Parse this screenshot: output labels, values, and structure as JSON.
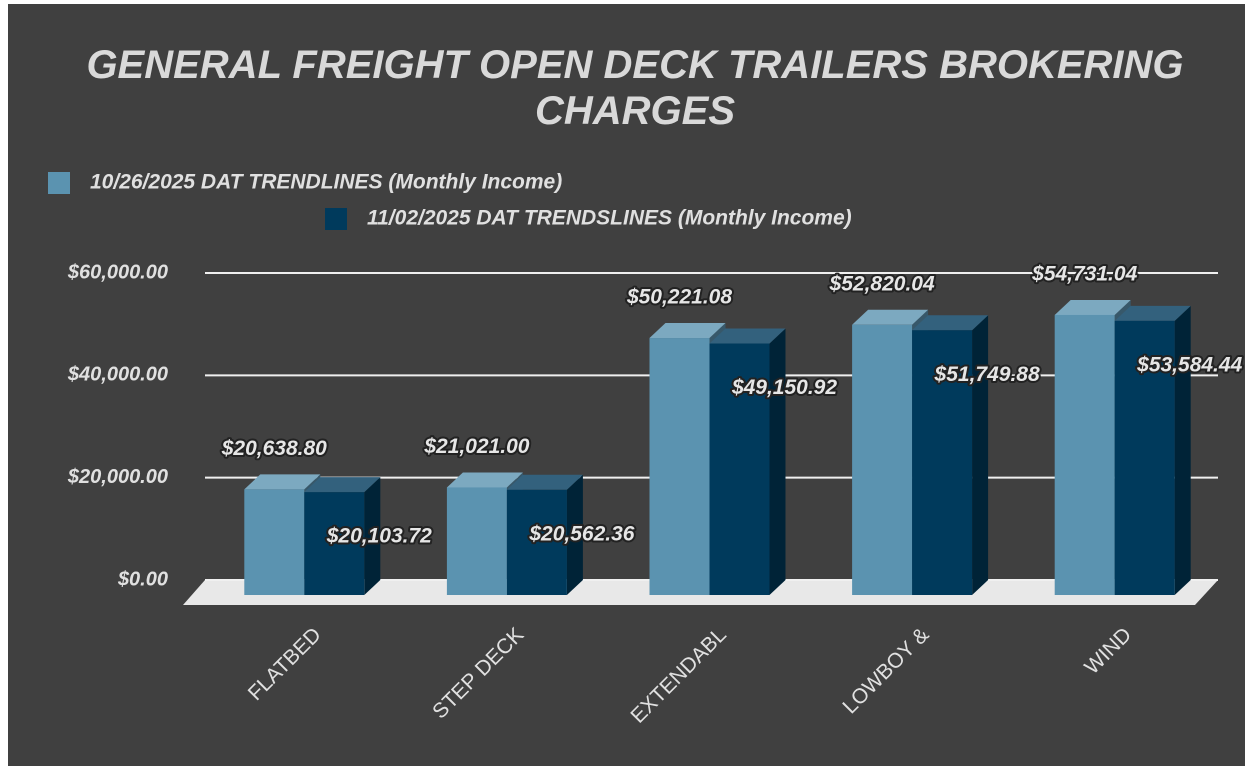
{
  "chart_data": {
    "type": "bar3d",
    "title": "GENERAL FREIGHT OPEN DECK TRAILERS BROKERING CHARGES",
    "categories": [
      "FLATBED",
      "STEP DECK",
      "EXTENDABL",
      "LOWBOY &",
      "WIND"
    ],
    "series": [
      {
        "name": "10/26/2025 DAT TRENDLINES (Monthly Income)",
        "color": "#5b93b0",
        "values": [
          20638.8,
          21021.0,
          50221.08,
          52820.04,
          54731.04
        ],
        "value_labels": [
          "$20,638.80",
          "$21,021.00",
          "$50,221.08",
          "$52,820.04",
          "$54,731.04"
        ]
      },
      {
        "name": "11/02/2025 DAT TRENDSLINES (Monthly Income)",
        "color": "#003a5c",
        "values": [
          20103.72,
          20562.36,
          49150.92,
          51749.88,
          53584.44
        ],
        "value_labels": [
          "$20,103.72",
          "$20,562.36",
          "$49,150.92",
          "$51,749.88",
          "$53,584.44"
        ]
      }
    ],
    "ylim": [
      0,
      60000
    ],
    "yticks": [
      {
        "value": 0,
        "label": "$0.00"
      },
      {
        "value": 20000,
        "label": "$20,000.00"
      },
      {
        "value": 40000,
        "label": "$40,000.00"
      },
      {
        "value": 60000,
        "label": "$60,000.00"
      }
    ],
    "grid": true
  }
}
